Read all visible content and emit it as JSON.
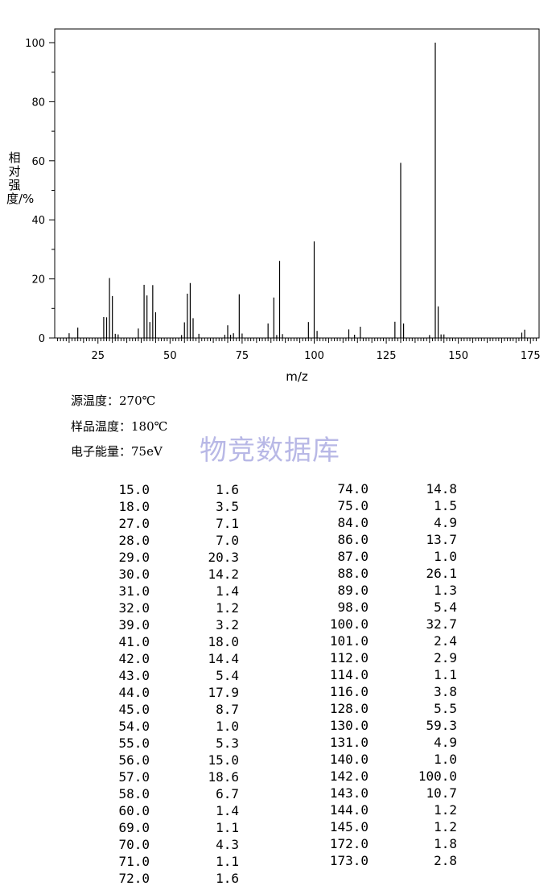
{
  "chart_data": {
    "type": "bar",
    "title": "",
    "xlabel": "m/z",
    "ylabel": "相对强度/%",
    "xlim": [
      10,
      178
    ],
    "ylim": [
      0,
      105
    ],
    "x_ticks": [
      25,
      50,
      75,
      100,
      125,
      150,
      175
    ],
    "y_ticks": [
      0,
      20,
      40,
      60,
      80,
      100
    ],
    "grid": false,
    "peaks": [
      {
        "mz": 15.0,
        "intensity": 1.6
      },
      {
        "mz": 18.0,
        "intensity": 3.5
      },
      {
        "mz": 27.0,
        "intensity": 7.1
      },
      {
        "mz": 28.0,
        "intensity": 7.0
      },
      {
        "mz": 29.0,
        "intensity": 20.3
      },
      {
        "mz": 30.0,
        "intensity": 14.2
      },
      {
        "mz": 31.0,
        "intensity": 1.4
      },
      {
        "mz": 32.0,
        "intensity": 1.2
      },
      {
        "mz": 39.0,
        "intensity": 3.2
      },
      {
        "mz": 41.0,
        "intensity": 18.0
      },
      {
        "mz": 42.0,
        "intensity": 14.4
      },
      {
        "mz": 43.0,
        "intensity": 5.4
      },
      {
        "mz": 44.0,
        "intensity": 17.9
      },
      {
        "mz": 45.0,
        "intensity": 8.7
      },
      {
        "mz": 54.0,
        "intensity": 1.0
      },
      {
        "mz": 55.0,
        "intensity": 5.3
      },
      {
        "mz": 56.0,
        "intensity": 15.0
      },
      {
        "mz": 57.0,
        "intensity": 18.6
      },
      {
        "mz": 58.0,
        "intensity": 6.7
      },
      {
        "mz": 60.0,
        "intensity": 1.4
      },
      {
        "mz": 69.0,
        "intensity": 1.1
      },
      {
        "mz": 70.0,
        "intensity": 4.3
      },
      {
        "mz": 71.0,
        "intensity": 1.1
      },
      {
        "mz": 72.0,
        "intensity": 1.6
      },
      {
        "mz": 74.0,
        "intensity": 14.8
      },
      {
        "mz": 75.0,
        "intensity": 1.5
      },
      {
        "mz": 84.0,
        "intensity": 4.9
      },
      {
        "mz": 86.0,
        "intensity": 13.7
      },
      {
        "mz": 87.0,
        "intensity": 1.0
      },
      {
        "mz": 88.0,
        "intensity": 26.1
      },
      {
        "mz": 89.0,
        "intensity": 1.3
      },
      {
        "mz": 98.0,
        "intensity": 5.4
      },
      {
        "mz": 100.0,
        "intensity": 32.7
      },
      {
        "mz": 101.0,
        "intensity": 2.4
      },
      {
        "mz": 112.0,
        "intensity": 2.9
      },
      {
        "mz": 114.0,
        "intensity": 1.1
      },
      {
        "mz": 116.0,
        "intensity": 3.8
      },
      {
        "mz": 128.0,
        "intensity": 5.5
      },
      {
        "mz": 130.0,
        "intensity": 59.3
      },
      {
        "mz": 131.0,
        "intensity": 4.9
      },
      {
        "mz": 140.0,
        "intensity": 1.0
      },
      {
        "mz": 142.0,
        "intensity": 100.0
      },
      {
        "mz": 143.0,
        "intensity": 10.7
      },
      {
        "mz": 144.0,
        "intensity": 1.2
      },
      {
        "mz": 145.0,
        "intensity": 1.2
      },
      {
        "mz": 172.0,
        "intensity": 1.8
      },
      {
        "mz": 173.0,
        "intensity": 2.8
      }
    ]
  },
  "conditions": {
    "source_temp": "源温度：270℃",
    "sample_temp": "样品温度：180℃",
    "electron_energy": "电子能量：75eV"
  },
  "watermark": "物竞数据库",
  "table": {
    "left": {
      "mz": [
        "15.0",
        "18.0",
        "27.0",
        "28.0",
        "29.0",
        "30.0",
        "31.0",
        "32.0",
        "39.0",
        "41.0",
        "42.0",
        "43.0",
        "44.0",
        "45.0",
        "54.0",
        "55.0",
        "56.0",
        "57.0",
        "58.0",
        "60.0",
        "69.0",
        "70.0",
        "71.0",
        "72.0"
      ],
      "intensity": [
        "1.6",
        "3.5",
        "7.1",
        "7.0",
        "20.3",
        "14.2",
        "1.4",
        "1.2",
        "3.2",
        "18.0",
        "14.4",
        "5.4",
        "17.9",
        "8.7",
        "1.0",
        "5.3",
        "15.0",
        "18.6",
        "6.7",
        "1.4",
        "1.1",
        "4.3",
        "1.1",
        "1.6"
      ]
    },
    "right": {
      "mz": [
        "74.0",
        "75.0",
        "84.0",
        "86.0",
        "87.0",
        "88.0",
        "89.0",
        "98.0",
        "100.0",
        "101.0",
        "112.0",
        "114.0",
        "116.0",
        "128.0",
        "130.0",
        "131.0",
        "140.0",
        "142.0",
        "143.0",
        "144.0",
        "145.0",
        "172.0",
        "173.0"
      ],
      "intensity": [
        "14.8",
        "1.5",
        "4.9",
        "13.7",
        "1.0",
        "26.1",
        "1.3",
        "5.4",
        "32.7",
        "2.4",
        "2.9",
        "1.1",
        "3.8",
        "5.5",
        "59.3",
        "4.9",
        "1.0",
        "100.0",
        "10.7",
        "1.2",
        "1.2",
        "1.8",
        "2.8"
      ]
    }
  }
}
